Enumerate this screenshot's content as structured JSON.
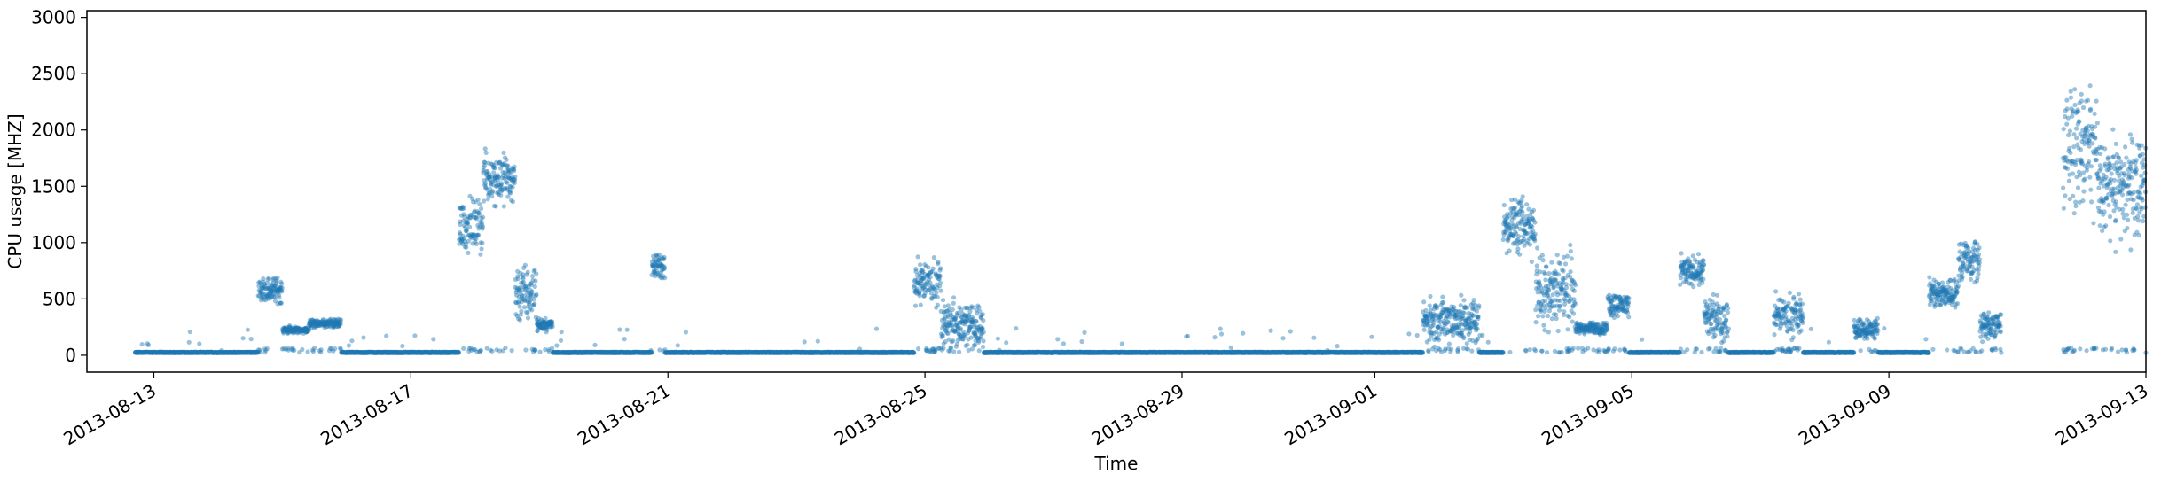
{
  "chart_data": {
    "type": "scatter",
    "title": "",
    "xlabel": "Time",
    "ylabel": "CPU usage [MHZ]",
    "xlim": [
      "2013-08-11T23:00",
      "2013-09-13T00:00"
    ],
    "ylim": [
      -150,
      3060
    ],
    "grid": false,
    "legend": "none",
    "x_ticks": [
      "2013-08-13",
      "2013-08-17",
      "2013-08-21",
      "2013-08-25",
      "2013-08-29",
      "2013-09-01",
      "2013-09-05",
      "2013-09-09",
      "2013-09-13"
    ],
    "y_ticks": [
      0,
      500,
      1000,
      1500,
      2000,
      2500,
      3000
    ],
    "point_color": "#1f77b4",
    "point_alpha": 0.45,
    "baseline_mhz": 25,
    "series": [
      {
        "observed_range": [
          "2013-08-12T17:00",
          "2013-09-10T18:00"
        ],
        "episodes": [
          {
            "start": "2013-08-14T15:00",
            "end": "2013-08-15T00:00",
            "level": 580,
            "spread": 90
          },
          {
            "start": "2013-08-15T00:00",
            "end": "2013-08-15T10:00",
            "level": 225,
            "spread": 25
          },
          {
            "start": "2013-08-15T10:00",
            "end": "2013-08-15T22:00",
            "level": 280,
            "spread": 30
          },
          {
            "start": "2013-08-17T18:00",
            "end": "2013-08-18T03:00",
            "level": 1150,
            "spread": 180
          },
          {
            "start": "2013-08-18T03:00",
            "end": "2013-08-18T15:00",
            "level": 1580,
            "spread": 170
          },
          {
            "start": "2013-08-18T15:00",
            "end": "2013-08-18T23:00",
            "level": 550,
            "spread": 220
          },
          {
            "start": "2013-08-18T23:00",
            "end": "2013-08-19T05:00",
            "level": 270,
            "spread": 40
          },
          {
            "start": "2013-08-20T18:00",
            "end": "2013-08-20T23:00",
            "level": 780,
            "spread": 90
          },
          {
            "start": "2013-08-24T20:00",
            "end": "2013-08-25T06:00",
            "level": 650,
            "spread": 160
          },
          {
            "start": "2013-08-25T06:00",
            "end": "2013-08-25T22:00",
            "level": 270,
            "spread": 170
          },
          {
            "start": "2013-09-01T18:00",
            "end": "2013-09-02T15:00",
            "level": 310,
            "spread": 160
          },
          {
            "start": "2013-09-03T00:00",
            "end": "2013-09-03T12:00",
            "level": 1150,
            "spread": 200
          },
          {
            "start": "2013-09-03T12:00",
            "end": "2013-09-04T03:00",
            "level": 600,
            "spread": 280
          },
          {
            "start": "2013-09-04T03:00",
            "end": "2013-09-04T15:00",
            "level": 240,
            "spread": 40
          },
          {
            "start": "2013-09-04T15:00",
            "end": "2013-09-04T23:00",
            "level": 450,
            "spread": 80
          },
          {
            "start": "2013-09-05T18:00",
            "end": "2013-09-06T03:00",
            "level": 750,
            "spread": 100
          },
          {
            "start": "2013-09-06T03:00",
            "end": "2013-09-06T12:00",
            "level": 320,
            "spread": 150
          },
          {
            "start": "2013-09-07T05:00",
            "end": "2013-09-07T16:00",
            "level": 350,
            "spread": 150
          },
          {
            "start": "2013-09-08T11:00",
            "end": "2013-09-08T20:00",
            "level": 240,
            "spread": 80
          },
          {
            "start": "2013-09-09T15:00",
            "end": "2013-09-10T02:00",
            "level": 550,
            "spread": 100
          },
          {
            "start": "2013-09-10T02:00",
            "end": "2013-09-10T10:00",
            "level": 850,
            "spread": 180
          },
          {
            "start": "2013-09-10T10:00",
            "end": "2013-09-10T18:00",
            "level": 260,
            "spread": 100
          }
        ]
      },
      {
        "observed_range": [
          "2013-09-11T17:00",
          "2013-09-13T00:00"
        ],
        "episodes": [
          {
            "start": "2013-09-11T17:00",
            "end": "2013-09-12T06:00",
            "level": 1850,
            "spread": 400
          },
          {
            "start": "2013-09-12T06:00",
            "end": "2013-09-13T00:00",
            "level": 1500,
            "spread": 350
          }
        ]
      }
    ]
  }
}
